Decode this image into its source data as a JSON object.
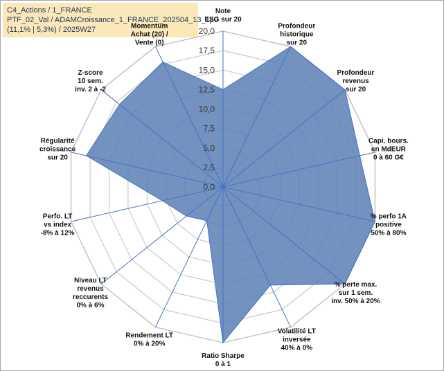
{
  "info_box": {
    "line1": "C4_Actions / 1_FRANCE",
    "line2": "PTF_02_Val / ADAMCroissance_1_FRANCE_202504_13_1p0",
    "line3": "(11,1% | 5,3%) / 2025W27"
  },
  "chart_data": {
    "type": "radar",
    "title": "",
    "rmax": 20,
    "ticks": [
      "0,0",
      "2,5",
      "5,0",
      "7,5",
      "10,0",
      "12,5",
      "15,0",
      "17,5",
      "20,0"
    ],
    "grid": true,
    "colors": {
      "fill": "#5b7fb5",
      "stroke": "#4472c4",
      "grid": "#bfbfbf",
      "tick_text": "#333333"
    },
    "axes": [
      {
        "label": [
          "Note",
          "ESG sur 20"
        ],
        "value": 12.5
      },
      {
        "label": [
          "Profondeur",
          "historique",
          "sur 20"
        ],
        "value": 20
      },
      {
        "label": [
          "Profondeur",
          "revenus",
          "sur 20"
        ],
        "value": 20
      },
      {
        "label": [
          "Capi. bours.",
          "en MdEUR",
          "0 à 60 G€"
        ],
        "value": 18
      },
      {
        "label": [
          "% perfo 1A",
          "positive",
          "50% à 80%"
        ],
        "value": 20
      },
      {
        "label": [
          "% perte max.",
          "sur 1 sem.",
          "inv. 50% à 20%"
        ],
        "value": 20
      },
      {
        "label": [
          "Volatilité LT",
          "inversée",
          "40% à 0%"
        ],
        "value": 14
      },
      {
        "label": [
          "Ratio Sharpe",
          "0 à 1"
        ],
        "value": 20
      },
      {
        "label": [
          "Rendement LT",
          "0% à 20%"
        ],
        "value": 4.8
      },
      {
        "label": [
          "Niveau LT",
          "revenus",
          "reccurents",
          "0% à 6%"
        ],
        "value": 6
      },
      {
        "label": [
          "Perfo. LT",
          "vs index",
          "-8% à 12%"
        ],
        "value": 8
      },
      {
        "label": [
          "Régularité",
          "croissance",
          "sur 20"
        ],
        "value": 18
      },
      {
        "label": [
          "Z-score",
          "10 sem.",
          "inv. 2 à -2"
        ],
        "value": 17
      },
      {
        "label": [
          "Momentum",
          "Achat (20) /",
          "Vente (0)"
        ],
        "value": 17.8
      }
    ]
  }
}
